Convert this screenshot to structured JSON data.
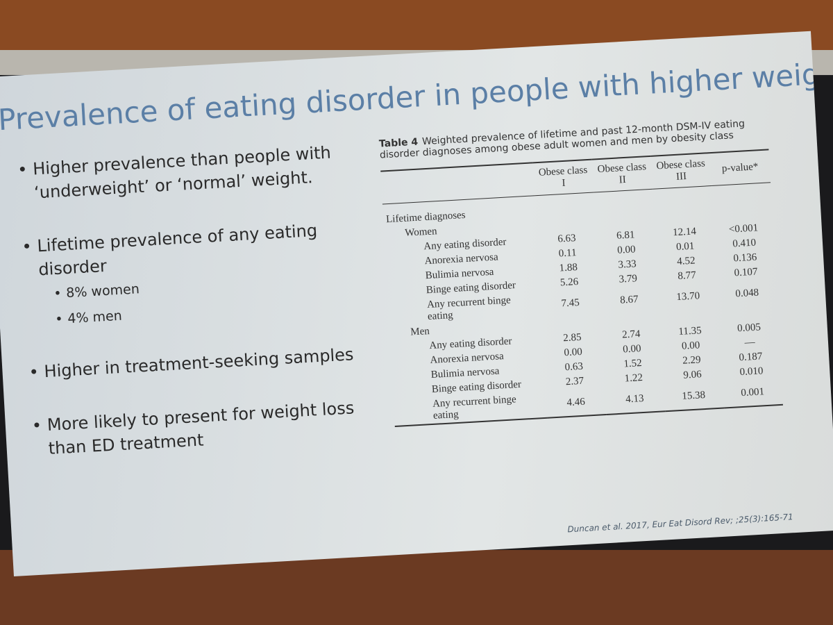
{
  "slide": {
    "title": "Prevalence of eating disorder in people with higher weight",
    "bullets": [
      {
        "text": "Higher prevalence than people with ‘underweight’ or ‘normal’ weight.",
        "sub": []
      },
      {
        "text": "Lifetime prevalence of any eating disorder",
        "sub": [
          "8% women",
          "4% men"
        ]
      },
      {
        "text": "Higher in treatment-seeking samples",
        "sub": []
      },
      {
        "text": "More likely to present for weight loss than ED treatment",
        "sub": []
      }
    ],
    "citation": "Duncan et al. 2017, Eur Eat Disord Rev; ;25(3):165-71"
  },
  "table": {
    "caption_label": "Table 4",
    "caption": "Weighted prevalence of lifetime and past 12-month DSM-IV eating disorder diagnoses among obese adult women and men by obesity class",
    "columns": [
      "Obese class I",
      "Obese class II",
      "Obese class III",
      "p-value*"
    ],
    "section": "Lifetime diagnoses",
    "groups": [
      {
        "name": "Women",
        "rows": [
          {
            "label": "Any eating disorder",
            "values": [
              "6.63",
              "6.81",
              "12.14",
              "<0.001"
            ]
          },
          {
            "label": "Anorexia nervosa",
            "values": [
              "0.11",
              "0.00",
              "0.01",
              "0.410"
            ]
          },
          {
            "label": "Bulimia nervosa",
            "values": [
              "1.88",
              "3.33",
              "4.52",
              "0.136"
            ]
          },
          {
            "label": "Binge eating disorder",
            "values": [
              "5.26",
              "3.79",
              "8.77",
              "0.107"
            ]
          },
          {
            "label": "Any recurrent binge eating",
            "values": [
              "7.45",
              "8.67",
              "13.70",
              "0.048"
            ]
          }
        ]
      },
      {
        "name": "Men",
        "rows": [
          {
            "label": "Any eating disorder",
            "values": [
              "2.85",
              "2.74",
              "11.35",
              "0.005"
            ]
          },
          {
            "label": "Anorexia nervosa",
            "values": [
              "0.00",
              "0.00",
              "0.00",
              "—"
            ]
          },
          {
            "label": "Bulimia nervosa",
            "values": [
              "0.63",
              "1.52",
              "2.29",
              "0.187"
            ]
          },
          {
            "label": "Binge eating disorder",
            "values": [
              "2.37",
              "1.22",
              "9.06",
              "0.010"
            ]
          },
          {
            "label": "Any recurrent binge eating",
            "values": [
              "4.46",
              "4.13",
              "15.38",
              "0.001"
            ]
          }
        ]
      }
    ]
  }
}
